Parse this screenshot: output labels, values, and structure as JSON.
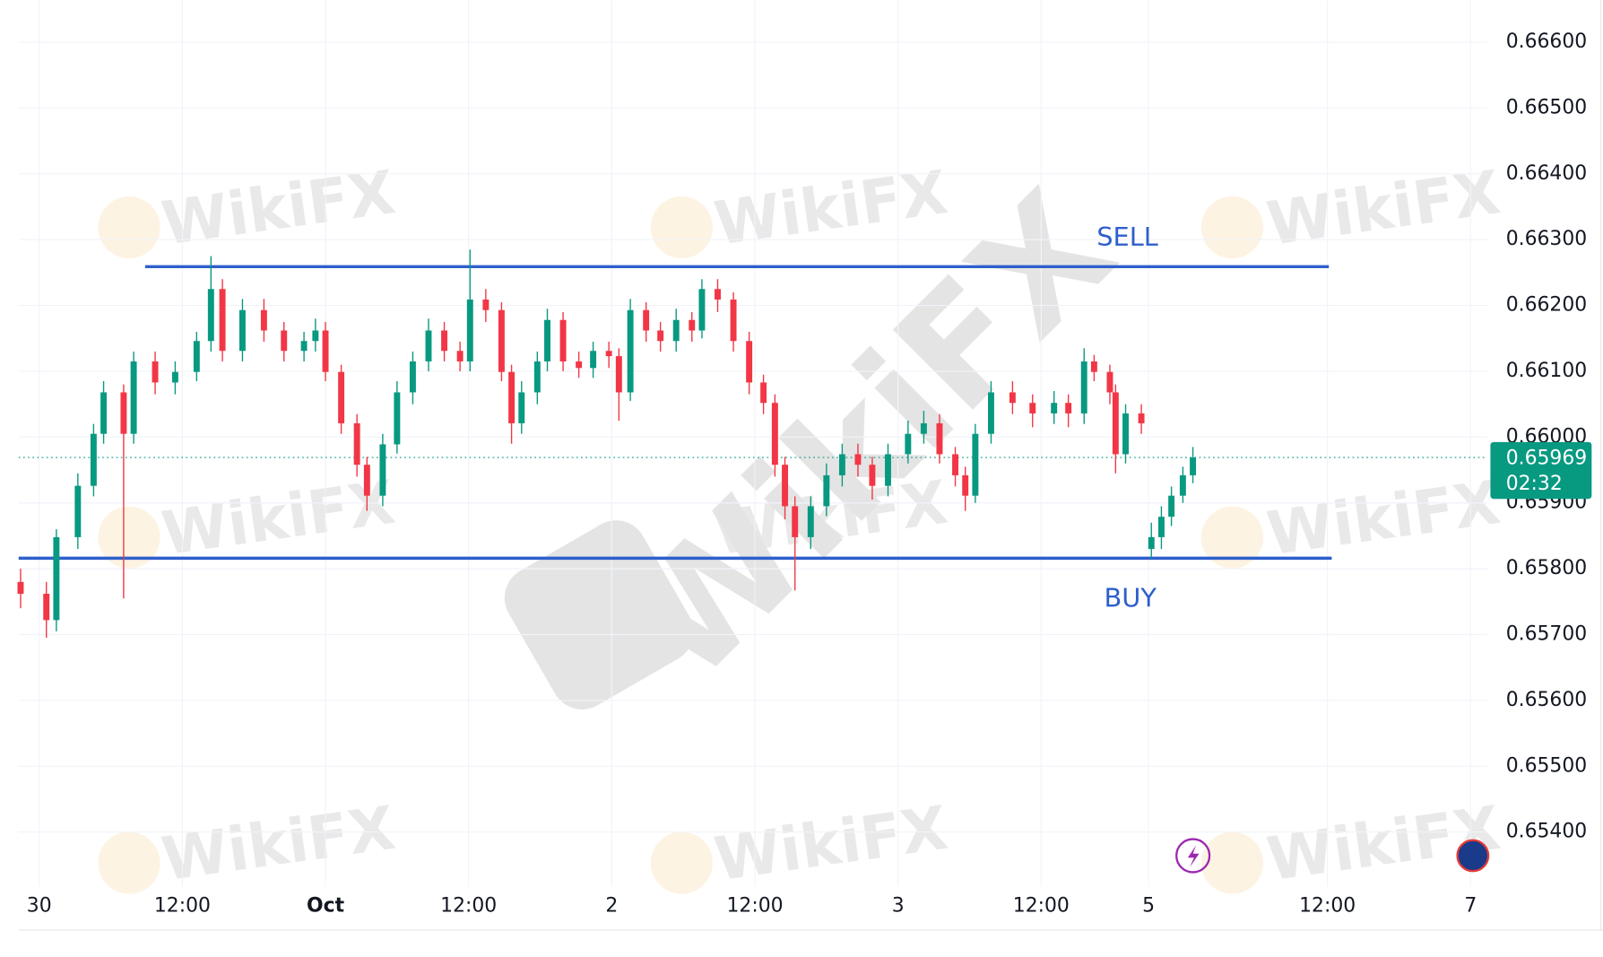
{
  "chart_data": {
    "type": "candlestick",
    "x": [
      -0.13,
      0.05,
      0.12,
      0.27,
      0.38,
      0.45,
      0.59,
      0.66,
      0.81,
      0.95,
      1.1,
      1.2,
      1.28,
      1.42,
      1.57,
      1.71,
      1.85,
      1.93,
      2.0,
      2.11,
      2.22,
      2.29,
      2.4,
      2.5,
      2.61,
      2.72,
      2.83,
      2.94,
      3.01,
      3.12,
      3.23,
      3.3,
      3.37,
      3.48,
      3.55,
      3.66,
      3.77,
      3.87,
      3.98,
      4.05,
      4.13,
      4.24,
      4.34,
      4.45,
      4.56,
      4.63,
      4.74,
      4.85,
      4.96,
      5.06,
      5.14,
      5.21,
      5.28,
      5.39,
      5.5,
      5.61,
      5.72,
      5.82,
      5.93,
      6.07,
      6.18,
      6.29,
      6.4,
      6.47,
      6.54,
      6.65,
      6.8,
      6.94,
      7.09,
      7.19,
      7.3,
      7.37,
      7.48,
      7.52,
      7.59,
      7.7,
      7.77,
      7.84,
      7.91,
      7.99,
      8.06
    ],
    "open": [
      0.6578,
      0.65762,
      0.65722,
      0.65848,
      0.65926,
      0.66005,
      0.66068,
      0.66005,
      0.66115,
      0.66083,
      0.66099,
      0.66146,
      0.66225,
      0.66131,
      0.66193,
      0.66162,
      0.66131,
      0.66146,
      0.66162,
      0.66099,
      0.66021,
      0.65958,
      0.65911,
      0.65989,
      0.66068,
      0.66115,
      0.66162,
      0.66131,
      0.66115,
      0.66209,
      0.66193,
      0.66099,
      0.66021,
      0.66068,
      0.66115,
      0.66178,
      0.66115,
      0.66105,
      0.66131,
      0.66123,
      0.66068,
      0.66193,
      0.66162,
      0.66146,
      0.66178,
      0.66162,
      0.66225,
      0.66209,
      0.66146,
      0.66083,
      0.66052,
      0.65958,
      0.65895,
      0.65848,
      0.65895,
      0.65942,
      0.65974,
      0.65958,
      0.65926,
      0.65974,
      0.66005,
      0.66021,
      0.65974,
      0.65942,
      0.65911,
      0.66005,
      0.66068,
      0.66052,
      0.66036,
      0.66052,
      0.66036,
      0.66115,
      0.66099,
      0.66068,
      0.65974,
      0.66036,
      0.6583,
      0.65848,
      0.65879,
      0.65911,
      0.65942
    ],
    "high": [
      0.658,
      0.6578,
      0.6586,
      0.65945,
      0.6602,
      0.66085,
      0.6608,
      0.6613,
      0.6613,
      0.66115,
      0.6616,
      0.66275,
      0.6624,
      0.6621,
      0.6621,
      0.66175,
      0.6616,
      0.6618,
      0.66175,
      0.6611,
      0.66035,
      0.6597,
      0.66005,
      0.66085,
      0.6613,
      0.6618,
      0.66175,
      0.66145,
      0.66285,
      0.66225,
      0.66205,
      0.6611,
      0.66085,
      0.6613,
      0.66195,
      0.6619,
      0.6613,
      0.66145,
      0.66145,
      0.66135,
      0.6621,
      0.66205,
      0.66175,
      0.66195,
      0.6619,
      0.6624,
      0.6624,
      0.6622,
      0.6616,
      0.66095,
      0.66065,
      0.6597,
      0.6591,
      0.6591,
      0.6596,
      0.6599,
      0.6599,
      0.6597,
      0.6599,
      0.66025,
      0.6604,
      0.66035,
      0.65985,
      0.65955,
      0.6602,
      0.66085,
      0.66085,
      0.66065,
      0.6607,
      0.66065,
      0.66135,
      0.66125,
      0.6611,
      0.6608,
      0.6605,
      0.6605,
      0.6587,
      0.65895,
      0.65925,
      0.65955,
      0.65985
    ],
    "low": [
      0.6574,
      0.65695,
      0.65705,
      0.6583,
      0.6591,
      0.6599,
      0.65755,
      0.6599,
      0.66065,
      0.66065,
      0.66085,
      0.6613,
      0.66115,
      0.66115,
      0.66145,
      0.66115,
      0.66115,
      0.6613,
      0.66085,
      0.66005,
      0.6594,
      0.65888,
      0.65895,
      0.65975,
      0.6605,
      0.661,
      0.66115,
      0.661,
      0.661,
      0.66175,
      0.66085,
      0.6599,
      0.66005,
      0.6605,
      0.661,
      0.661,
      0.6609,
      0.6609,
      0.66105,
      0.66025,
      0.66055,
      0.66145,
      0.6613,
      0.6613,
      0.66145,
      0.6615,
      0.6619,
      0.6613,
      0.66065,
      0.66035,
      0.6594,
      0.65875,
      0.65767,
      0.6583,
      0.6588,
      0.65925,
      0.6594,
      0.65905,
      0.6591,
      0.6596,
      0.6599,
      0.6596,
      0.65925,
      0.65888,
      0.659,
      0.6599,
      0.66035,
      0.66015,
      0.6602,
      0.66015,
      0.6602,
      0.66085,
      0.6605,
      0.65945,
      0.6596,
      0.66005,
      0.65815,
      0.6583,
      0.65865,
      0.659,
      0.6593
    ],
    "close": [
      0.65762,
      0.65722,
      0.65848,
      0.65926,
      0.66005,
      0.66068,
      0.66005,
      0.66115,
      0.66083,
      0.66099,
      0.66146,
      0.66225,
      0.66131,
      0.66193,
      0.66162,
      0.66131,
      0.66146,
      0.66162,
      0.66099,
      0.66021,
      0.65958,
      0.65911,
      0.65989,
      0.66068,
      0.66115,
      0.66162,
      0.66131,
      0.66115,
      0.66209,
      0.66193,
      0.66099,
      0.66021,
      0.66068,
      0.66115,
      0.66178,
      0.66115,
      0.66105,
      0.66131,
      0.66123,
      0.66068,
      0.66193,
      0.66162,
      0.66146,
      0.66178,
      0.66162,
      0.66225,
      0.66209,
      0.66146,
      0.66083,
      0.66052,
      0.65958,
      0.65895,
      0.65848,
      0.65895,
      0.65942,
      0.65974,
      0.65958,
      0.65926,
      0.65974,
      0.66005,
      0.66021,
      0.65974,
      0.65942,
      0.65911,
      0.66005,
      0.66068,
      0.66052,
      0.66036,
      0.66052,
      0.66036,
      0.66115,
      0.66099,
      0.66068,
      0.65974,
      0.66036,
      0.66021,
      0.65848,
      0.65879,
      0.65911,
      0.65942,
      0.65969
    ],
    "up_color": "#089981",
    "down_color": "#f23645",
    "xlim": [
      -0.144,
      10.117
    ],
    "ylim": [
      0.65317,
      0.66664
    ],
    "xticks": [
      {
        "value": 0,
        "label": "30"
      },
      {
        "value": 1,
        "label": "12:00"
      },
      {
        "value": 2,
        "label": "Oct"
      },
      {
        "value": 3,
        "label": "12:00"
      },
      {
        "value": 4,
        "label": "2"
      },
      {
        "value": 5,
        "label": "12:00"
      },
      {
        "value": 6,
        "label": "3"
      },
      {
        "value": 7,
        "label": "12:00"
      },
      {
        "value": 7.75,
        "label": "5"
      },
      {
        "value": 9,
        "label": "12:00"
      },
      {
        "value": 10,
        "label": "7"
      }
    ],
    "yticks": [
      {
        "value": 0.654,
        "label": "0.65400"
      },
      {
        "value": 0.655,
        "label": "0.65500"
      },
      {
        "value": 0.656,
        "label": "0.65600"
      },
      {
        "value": 0.657,
        "label": "0.65700"
      },
      {
        "value": 0.658,
        "label": "0.65800"
      },
      {
        "value": 0.659,
        "label": "0.65900"
      },
      {
        "value": 0.66,
        "label": "0.66000"
      },
      {
        "value": 0.661,
        "label": "0.66100"
      },
      {
        "value": 0.662,
        "label": "0.66200"
      },
      {
        "value": 0.663,
        "label": "0.66300"
      },
      {
        "value": 0.664,
        "label": "0.66400"
      },
      {
        "value": 0.665,
        "label": "0.66500"
      },
      {
        "value": 0.666,
        "label": "0.66600"
      }
    ],
    "grid": true,
    "levels": [
      {
        "label": "SELL",
        "value": 0.66259,
        "x": [
          0.74,
          9.01
        ],
        "color": "#2e5fcc"
      },
      {
        "label": "BUY",
        "value": 0.65816,
        "x": [
          -0.144,
          9.03
        ],
        "color": "#2e5fcc"
      }
    ],
    "last_price": 0.65969,
    "countdown": "02:32",
    "last_color": "#089981",
    "watermark": "WikiFX"
  }
}
